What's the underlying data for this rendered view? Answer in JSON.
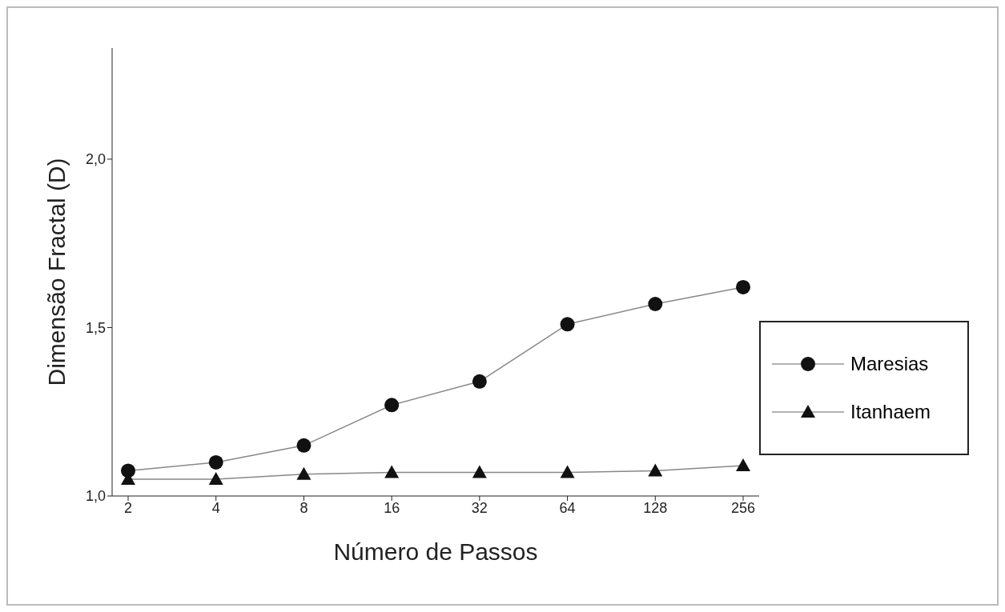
{
  "chart_data": {
    "type": "line",
    "xlabel": "Número de Passos",
    "ylabel": "Dimensão Fractal (D)",
    "categories": [
      "2",
      "4",
      "8",
      "16",
      "32",
      "64",
      "128",
      "256"
    ],
    "series": [
      {
        "name": "Maresias",
        "color": "#111111",
        "marker": "circle",
        "values": [
          1.075,
          1.1,
          1.15,
          1.27,
          1.34,
          1.51,
          1.57,
          1.62
        ]
      },
      {
        "name": "Itanhaem",
        "color": "#111111",
        "marker": "triangle",
        "values": [
          1.05,
          1.05,
          1.065,
          1.07,
          1.07,
          1.07,
          1.075,
          1.09
        ]
      }
    ],
    "ylim": [
      1.0,
      2.33
    ],
    "yticks": [
      {
        "value": 1.0,
        "label": "1,0"
      },
      {
        "value": 1.5,
        "label": "1,5"
      },
      {
        "value": 2.0,
        "label": "2,0"
      }
    ],
    "grid": false,
    "legend": "right"
  }
}
